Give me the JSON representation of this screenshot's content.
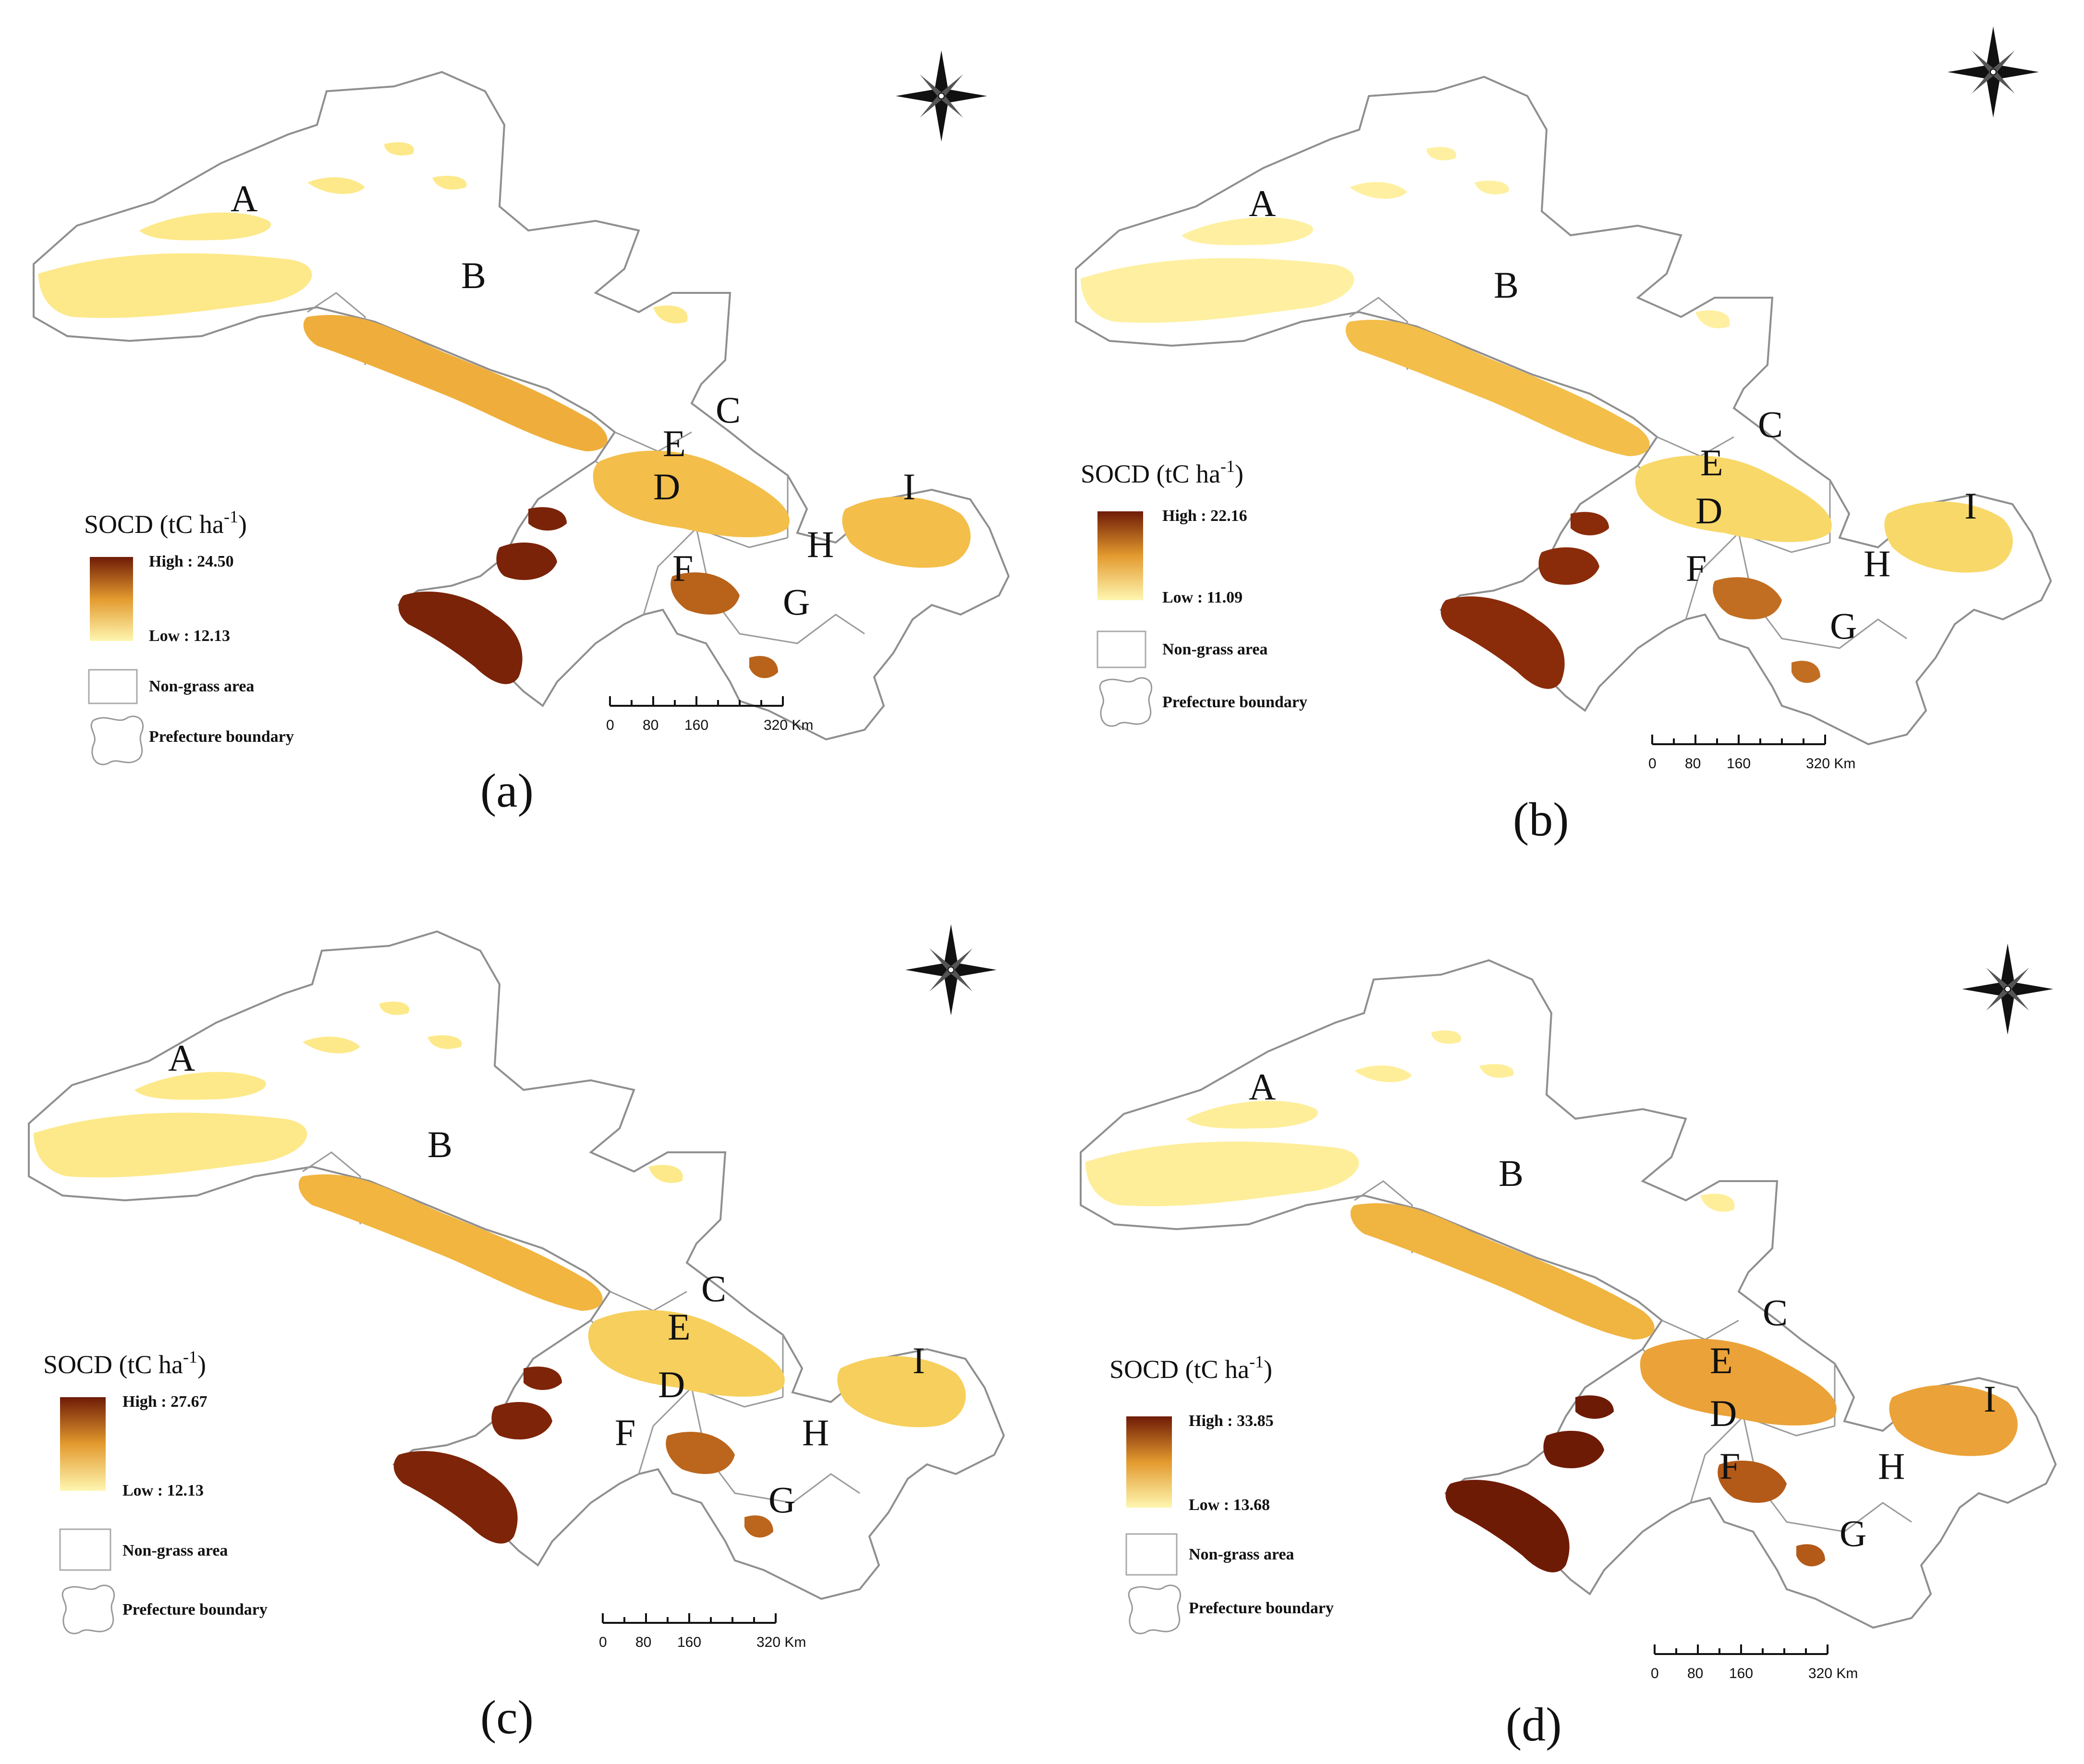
{
  "figure": {
    "colors": {
      "low": "#FEF6B0",
      "mid": "#F1B53A",
      "high": "#6E1B06",
      "boundary": "#8f8f8f"
    },
    "regions": [
      "A",
      "B",
      "C",
      "D",
      "E",
      "F",
      "G",
      "H",
      "I"
    ],
    "panels": [
      {
        "letter": "(a)",
        "legend": {
          "title": "SOCD (tC ha",
          "superscript": "-1",
          "close": ")",
          "high": "High : 24.50",
          "low": "Low : 12.13"
        }
      },
      {
        "letter": "(b)",
        "legend": {
          "title": "SOCD (tC ha",
          "superscript": "-1",
          "close": ")",
          "high": "High : 22.16",
          "low": "Low : 11.09"
        }
      },
      {
        "letter": "(c)",
        "legend": {
          "title": "SOCD (tC ha",
          "superscript": "-1",
          "close": ")",
          "high": "High : 27.67",
          "low": "Low : 12.13"
        }
      },
      {
        "letter": "(d)",
        "legend": {
          "title": "SOCD (tC ha",
          "superscript": "-1",
          "close": ")",
          "high": "High : 33.85",
          "low": "Low : 13.68"
        }
      }
    ],
    "legend_common": {
      "non_grass": "Non-grass area",
      "prefecture": "Prefecture boundary"
    },
    "scale_bar": {
      "labels": [
        "0",
        "80",
        "160",
        "320 Km"
      ]
    },
    "icons": {
      "north": "compass-rose-icon"
    }
  }
}
